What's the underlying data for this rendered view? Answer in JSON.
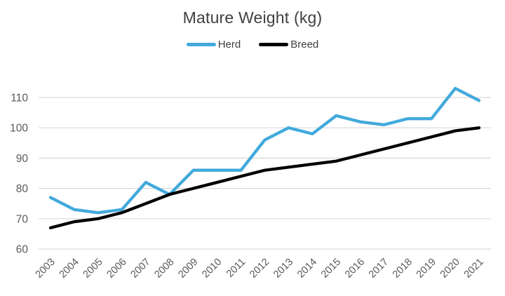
{
  "chart": {
    "title": "Mature Weight (kg)"
  },
  "colors": {
    "herd_line": "#41A9DC",
    "breed_line": "#000000",
    "gridline": "#d9d9d9",
    "axis_text": "#595959",
    "title_text": "#404040"
  },
  "chart_data": {
    "type": "line",
    "title": "Mature Weight (kg)",
    "categories": [
      "2003",
      "2004",
      "2005",
      "2006",
      "2007",
      "2008",
      "2009",
      "2010",
      "2011",
      "2012",
      "2013",
      "2014",
      "2015",
      "2016",
      "2017",
      "2018",
      "2019",
      "2020",
      "2021"
    ],
    "series": [
      {
        "name": "Herd",
        "color": "#41A9DC",
        "values": [
          77,
          73,
          72,
          73,
          82,
          78,
          86,
          86,
          86,
          96,
          100,
          98,
          104,
          102,
          101,
          103,
          103,
          113,
          109
        ]
      },
      {
        "name": "Breed",
        "color": "#000000",
        "values": [
          67,
          69,
          70,
          72,
          75,
          78,
          80,
          82,
          84,
          86,
          87,
          88,
          89,
          91,
          93,
          95,
          97,
          99,
          100
        ]
      }
    ],
    "xlabel": "",
    "ylabel": "",
    "ylim": [
      60,
      110
    ],
    "ytick_step": 10,
    "yticks": [
      60,
      70,
      80,
      90,
      100,
      110
    ],
    "grid": true,
    "legend_position": "top",
    "x_label_rotation_deg": -45
  }
}
